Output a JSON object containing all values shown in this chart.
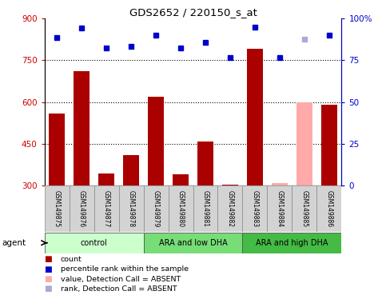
{
  "title": "GDS2652 / 220150_s_at",
  "samples": [
    "GSM149875",
    "GSM149876",
    "GSM149877",
    "GSM149878",
    "GSM149879",
    "GSM149880",
    "GSM149881",
    "GSM149882",
    "GSM149883",
    "GSM149884",
    "GSM149885",
    "GSM149886"
  ],
  "bar_values": [
    560,
    710,
    345,
    410,
    620,
    340,
    460,
    305,
    790,
    310,
    600,
    590
  ],
  "bar_colors": [
    "#aa0000",
    "#aa0000",
    "#aa0000",
    "#aa0000",
    "#aa0000",
    "#aa0000",
    "#aa0000",
    "#aa0000",
    "#aa0000",
    "#ffaaaa",
    "#ffaaaa",
    "#aa0000"
  ],
  "dot_values": [
    830,
    865,
    795,
    800,
    840,
    795,
    815,
    760,
    870,
    760,
    825,
    840
  ],
  "dot_colors": [
    "#0000cc",
    "#0000cc",
    "#0000cc",
    "#0000cc",
    "#0000cc",
    "#0000cc",
    "#0000cc",
    "#0000cc",
    "#0000cc",
    "#0000cc",
    "#aaaadd",
    "#0000cc"
  ],
  "ylim_left": [
    300,
    900
  ],
  "yticks_left": [
    300,
    450,
    600,
    750,
    900
  ],
  "yticks_right": [
    0,
    25,
    50,
    75,
    100
  ],
  "ytick_labels_right": [
    "0",
    "25",
    "50",
    "75",
    "100%"
  ],
  "hlines": [
    750,
    600,
    450
  ],
  "groups": [
    {
      "label": "control",
      "start": 0,
      "end": 3,
      "color": "#ccffcc"
    },
    {
      "label": "ARA and low DHA",
      "start": 4,
      "end": 7,
      "color": "#77dd77"
    },
    {
      "label": "ARA and high DHA",
      "start": 8,
      "end": 11,
      "color": "#44bb44"
    }
  ],
  "agent_label": "agent",
  "legend_items": [
    {
      "color": "#aa0000",
      "label": "count"
    },
    {
      "color": "#0000cc",
      "label": "percentile rank within the sample"
    },
    {
      "color": "#ffaaaa",
      "label": "value, Detection Call = ABSENT"
    },
    {
      "color": "#aaaacc",
      "label": "rank, Detection Call = ABSENT"
    }
  ],
  "left_axis_color": "#cc0000",
  "right_axis_color": "#0000cc",
  "background_color": "#ffffff"
}
